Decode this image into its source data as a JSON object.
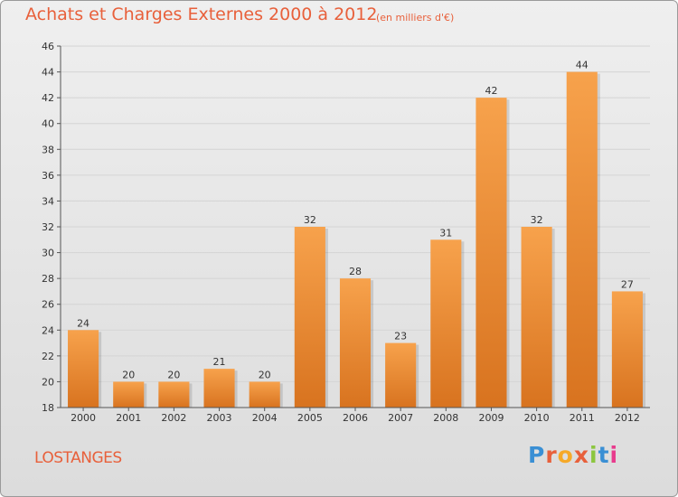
{
  "header": {
    "title": "Achats et Charges Externes 2000 à 2012",
    "subtitle": "(en milliers d'€)"
  },
  "footer": {
    "place": "LOSTANGES",
    "logo": "Proxiti",
    "logo_colors": [
      "#3a8fd4",
      "#e8603b",
      "#f6a928",
      "#e8603b",
      "#8cc63f",
      "#3a8fd4",
      "#e83b8d"
    ]
  },
  "colors": {
    "bar_top": "#f7a24c",
    "bar_bottom": "#d8731f",
    "grid": "#d4d4d4",
    "axis": "#555555",
    "text_accent": "#e8603b"
  },
  "chart_data": {
    "type": "bar",
    "categories": [
      "2000",
      "2001",
      "2002",
      "2003",
      "2004",
      "2005",
      "2006",
      "2007",
      "2008",
      "2009",
      "2010",
      "2011",
      "2012"
    ],
    "values": [
      24,
      20,
      20,
      21,
      20,
      32,
      28,
      23,
      31,
      42,
      32,
      44,
      27
    ],
    "ylim": [
      18,
      46
    ],
    "yticks": [
      18,
      20,
      22,
      24,
      26,
      28,
      30,
      32,
      34,
      36,
      38,
      40,
      42,
      44,
      46
    ],
    "grid": true
  }
}
